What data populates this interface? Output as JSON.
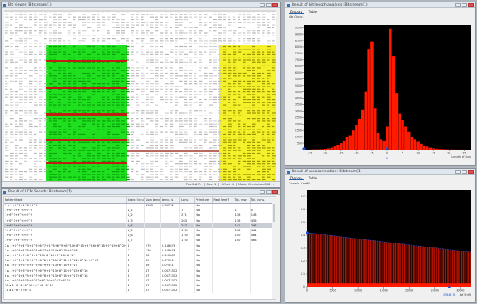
{
  "colors": {
    "green": "#1ee01e",
    "yellow": "#f4f02a",
    "red_band": "#c21d12",
    "plot_bg": "#000000",
    "bar": "#ff1a00",
    "marker": "#1e4fd8"
  },
  "binary_window": {
    "title": "Bit viewer: Bitstream(1)",
    "status": [
      "Pos: 0x174",
      "Size: 1",
      "Offset: 4",
      "Mode: Circulation 8X8 ( - )"
    ]
  },
  "lcs_window": {
    "title": "Result of LCM Search: Bitstream(1)",
    "columns": [
      "Pattern/text",
      "Index Occur.",
      "Sum Leng.",
      "Leng. %",
      "Leng.",
      "Primitive",
      "Real time?",
      "Tot. row",
      "Tot. conv."
    ],
    "rows": [
      [
        "1 ▾ 1+6^3+4^6+6^9",
        "",
        "4983",
        "3.36792",
        "",
        "No",
        "",
        "",
        ""
      ],
      [
        "    1+6^3+6^6+6^9",
        "L_1",
        "",
        "",
        "77",
        "No",
        "",
        "1",
        "0"
      ],
      [
        "    1+6^3+6^6+6^9",
        "L_2",
        "",
        "",
        "271",
        "No",
        "",
        "136",
        "143"
      ],
      [
        "    1+6^3+6^6+6^9",
        "L_3",
        "",
        "",
        "263",
        "No",
        "",
        "136",
        "456"
      ],
      [
        "    1+6^3+6^6+6^9",
        "L_4",
        "",
        "",
        "247",
        "No",
        "",
        "141",
        "297"
      ],
      [
        "    1+6^3+6^6+6^9",
        "L_5",
        "",
        "",
        "1709",
        "No",
        "",
        "138",
        "464"
      ],
      [
        "    1+6^3+6^6+6^9",
        "L_6",
        "",
        "",
        "1704",
        "No",
        "",
        "140",
        "464"
      ],
      [
        "    1+6^3+6^6+6^9",
        "L_7",
        "",
        "",
        "1705",
        "No",
        "",
        "140",
        "468"
      ],
      [
        "2 ▸ 1+6^7+4^3+6^6+6^7+6^8+6^9+6^10+6^15+6^16+6^18+6^19+6^20",
        "1",
        "279",
        "0.188676",
        "",
        "No",
        "",
        "",
        ""
      ],
      [
        "3 ▸ 1+6^3+4^5+6^4+6^7+6^14+6^15+6^18",
        "2",
        "136",
        "0.108676",
        "",
        "No",
        "",
        "",
        ""
      ],
      [
        "4 ▸ 1+6^3+7+6^3+6^13+6^14+6^16+6^17",
        "1",
        "80",
        "0.120801",
        "",
        "No",
        "",
        "",
        ""
      ],
      [
        "5 ▸ 1+6^3+4^6+6^7+6^8+6^10+6^11+6^12+6^14+6^17",
        "1",
        "49",
        "0.07551",
        "",
        "No",
        "",
        "",
        ""
      ],
      [
        "6 ▸ 1+6^3+6^5+6^6+6^9+6^13+6^14+6^17",
        "1",
        "49",
        "0.07551",
        "",
        "No",
        "",
        "",
        ""
      ],
      [
        "7 ▸ 1+6^3+6^4+6^7+6^9+6^13+6^14+6^15+6^16",
        "1",
        "47",
        "0.0673312",
        "",
        "No",
        "",
        "",
        ""
      ],
      [
        "8 ▸ 1+6^3+4^5+6^7+6^8+6^13+6^15+6^17+6^18",
        "1",
        "47",
        "0.0673312",
        "",
        "No",
        "",
        "",
        ""
      ],
      [
        "9 ▸ 1+6^4+6^5+6^12+6^16+6^17+6^18",
        "1",
        "47",
        "0.0673312",
        "",
        "No",
        "",
        "",
        ""
      ],
      [
        "10 ▸ 1+6^4+6^12+6^16+6^17",
        "1",
        "47",
        "0.0673312",
        "",
        "No",
        "",
        "",
        ""
      ],
      [
        "11 ▸ 1+6^7+6^17",
        "1",
        "47",
        "0.0673312",
        "",
        "No",
        "",
        "",
        ""
      ]
    ]
  },
  "hist_window": {
    "title": "Result of bit length analysis: Bitstream(1)",
    "tabs": [
      "Display",
      "Table"
    ],
    "y_label": "Nb. Occur.",
    "x_label": "Length of Run",
    "bottom_label": "0"
  },
  "auto_window": {
    "title": "Result of autocorrelation: Bitstream(1)",
    "tabs": [
      "Display",
      "Table"
    ],
    "y_label": "Correla. Coeffi.",
    "x_label": "bit Shift",
    "marker_label": "27843.72"
  },
  "chart_data": [
    {
      "type": "bar",
      "x": [
        -25,
        -24,
        -23,
        -22,
        -21,
        -20,
        -19,
        -18,
        -17,
        -16,
        -15,
        -14,
        -13,
        -12,
        -11,
        -10,
        -9,
        -8,
        -7,
        -6,
        -5,
        -4,
        -3,
        -2,
        -1,
        0,
        1,
        2,
        3,
        4,
        5,
        6,
        7,
        8,
        9,
        10,
        11,
        12,
        13,
        14,
        15,
        16,
        17,
        18,
        19,
        20,
        21,
        22,
        23,
        24,
        25
      ],
      "values": [
        10,
        20,
        25,
        30,
        40,
        60,
        100,
        150,
        240,
        380,
        500,
        700,
        950,
        1100,
        1500,
        1900,
        2400,
        3100,
        4500,
        7800,
        8400,
        3200,
        1300,
        800,
        700,
        1800,
        9400,
        7300,
        4400,
        2800,
        2300,
        1800,
        1400,
        1000,
        800,
        600,
        450,
        320,
        230,
        150,
        100,
        70,
        50,
        40,
        30,
        20,
        15,
        10,
        10,
        5,
        5
      ],
      "xlabel": "Length of Run",
      "ylabel": "Nb. Occur.",
      "xticks": [
        -25,
        -20,
        -15,
        -10,
        -5,
        0,
        5,
        10,
        15,
        20,
        25
      ],
      "yticks": [
        500,
        1000,
        1500,
        2000,
        2500,
        3000,
        3500,
        4000,
        4500,
        5000,
        5500,
        6000,
        6500,
        7000,
        7500,
        8000,
        8500,
        9000,
        9500
      ],
      "xlim": [
        -27,
        27
      ],
      "ylim": [
        0,
        9700
      ],
      "grid": false
    },
    {
      "type": "bar",
      "xlabel": "bit Shift",
      "ylabel": "Correla. Coeffi.",
      "xticks": [
        0,
        5000,
        10000,
        15000,
        20000,
        25000,
        30000
      ],
      "yticks": [
        0,
        0.1,
        0.2,
        0.3,
        0.4,
        0.5,
        0.6,
        0.7
      ],
      "xlim": [
        0,
        32000
      ],
      "ylim": [
        0,
        0.75
      ],
      "bar_count": 130,
      "start_peak": 0.42,
      "end_peak": 0.27,
      "floor": 0.03,
      "marker_x": 27843.72,
      "grid": false
    }
  ]
}
